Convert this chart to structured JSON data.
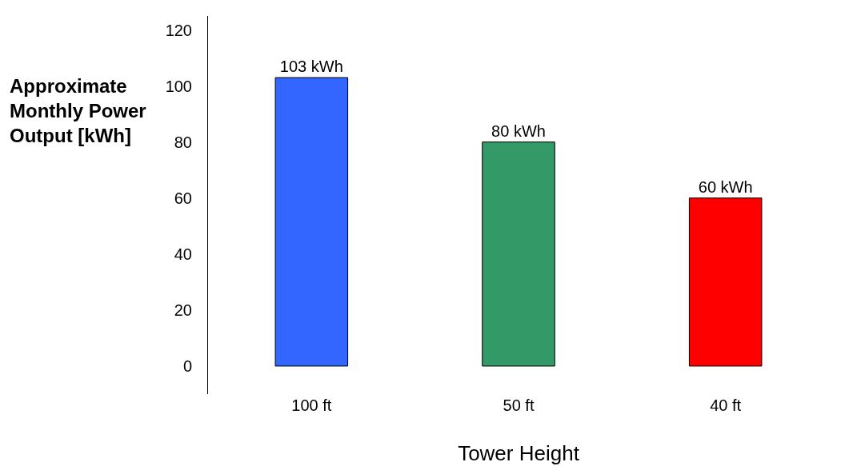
{
  "chart_data": {
    "type": "bar",
    "xlabel": "Tower Height",
    "ylabel": "Approximate Monthly Power Output [kWh]",
    "categories": [
      "100 ft",
      "50 ft",
      "40 ft"
    ],
    "values": [
      103,
      80,
      60
    ],
    "colors": [
      "#3366ff",
      "#339966",
      "#ff0000"
    ],
    "value_labels": [
      "103 kWh",
      "80 kWh",
      "60 kWh"
    ],
    "ylim": [
      -10,
      125
    ],
    "yticks": [
      0,
      20,
      40,
      60,
      80,
      100,
      120
    ]
  }
}
